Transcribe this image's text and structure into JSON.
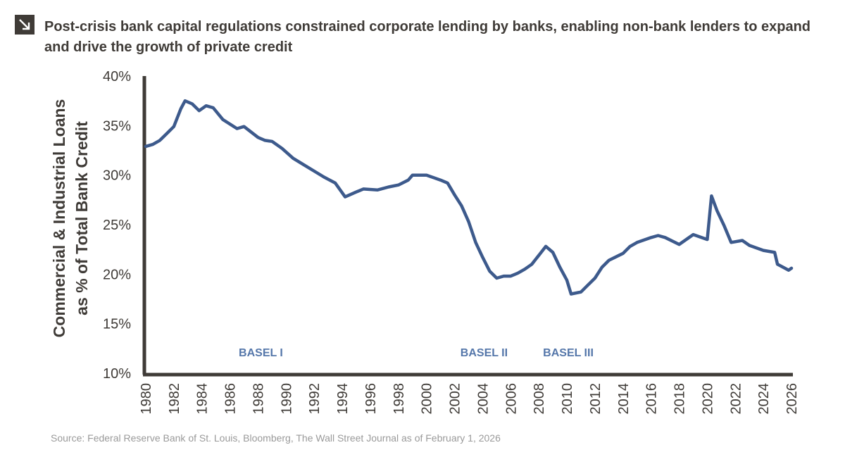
{
  "header": {
    "icon": "arrow-down-right-icon",
    "title": "Post-crisis bank capital regulations constrained corporate lending by banks, enabling non-bank lenders to expand and drive the growth of private credit"
  },
  "source": "Source: Federal Reserve Bank of St. Louis, Bloomberg, The Wall Street Journal as of February 1, 2026",
  "chart_data": {
    "type": "line",
    "title": "",
    "ylabel_lines": [
      "Commercial & Industrial Loans",
      "as % of Total Bank Credit"
    ],
    "xlabel": "",
    "xlim": [
      1980,
      2026
    ],
    "ylim": [
      10,
      40
    ],
    "y_ticks": [
      "10%",
      "15%",
      "20%",
      "25%",
      "30%",
      "35%",
      "40%"
    ],
    "y_tick_values": [
      10,
      15,
      20,
      25,
      30,
      35,
      40
    ],
    "x_ticks": [
      "1980",
      "1982",
      "1984",
      "1986",
      "1988",
      "1990",
      "1992",
      "1994",
      "1996",
      "1998",
      "2000",
      "2002",
      "2004",
      "2006",
      "2008",
      "2010",
      "2012",
      "2014",
      "2016",
      "2018",
      "2020",
      "2022",
      "2024",
      "2026"
    ],
    "grid": false,
    "line_color": "#3d5a8c",
    "annotation_color": "#5577aa",
    "annotations": [
      {
        "text": "BASEL I",
        "x": 1988.2,
        "y": 11.7
      },
      {
        "text": "BASEL II",
        "x": 2004.1,
        "y": 11.7
      },
      {
        "text": "BASEL III",
        "x": 2010.1,
        "y": 11.7
      }
    ],
    "series": [
      {
        "x": [
          1980,
          1980.5,
          1981,
          1981.5,
          1982,
          1982.5,
          1982.8,
          1983.3,
          1983.8,
          1984.3,
          1984.8,
          1985.5,
          1986.5,
          1987,
          1988,
          1988.5,
          1989,
          1989.7,
          1990.5,
          1991.3,
          1992,
          1992.7,
          1993.5,
          1994.2,
          1995,
          1995.5,
          1996.5,
          1997.3,
          1998,
          1998.7,
          1999,
          2000,
          2001,
          2001.5,
          2002,
          2002.5,
          2003,
          2003.5,
          2004,
          2004.5,
          2005,
          2005.5,
          2006,
          2006.5,
          2007,
          2007.5,
          2008,
          2008.5,
          2009,
          2009.5,
          2010,
          2010.3,
          2011,
          2011.5,
          2012,
          2012.5,
          2013,
          2014,
          2014.5,
          2015,
          2016,
          2016.5,
          2017,
          2018,
          2019,
          2020,
          2020.3,
          2020.7,
          2021.2,
          2021.7,
          2022.5,
          2023,
          2024,
          2024.8,
          2025,
          2025.8,
          2026
        ],
        "y": [
          32.9,
          33.1,
          33.5,
          34.2,
          34.9,
          36.7,
          37.5,
          37.2,
          36.5,
          37.0,
          36.8,
          35.6,
          34.7,
          34.9,
          33.8,
          33.5,
          33.4,
          32.7,
          31.7,
          31.0,
          30.4,
          29.8,
          29.2,
          27.8,
          28.3,
          28.6,
          28.5,
          28.8,
          29.0,
          29.5,
          30.0,
          30.0,
          29.5,
          29.2,
          28.0,
          26.9,
          25.3,
          23.2,
          21.7,
          20.3,
          19.6,
          19.8,
          19.8,
          20.1,
          20.5,
          21.0,
          21.9,
          22.8,
          22.2,
          20.7,
          19.4,
          18.0,
          18.2,
          18.9,
          19.6,
          20.7,
          21.4,
          22.1,
          22.8,
          23.2,
          23.7,
          23.9,
          23.7,
          23.0,
          24.0,
          23.5,
          27.9,
          26.4,
          24.9,
          23.2,
          23.4,
          22.9,
          22.4,
          22.2,
          21.0,
          20.4,
          20.6
        ]
      }
    ]
  }
}
